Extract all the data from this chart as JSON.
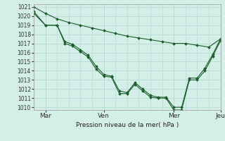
{
  "title": "Pression niveau de la mer( hPa )",
  "ylabel_min": 1010,
  "ylabel_max": 1021,
  "background_color": "#d4eee8",
  "grid_color_major": "#b0d8d0",
  "grid_color_minor": "#c8eae4",
  "line_color": "#1a5c2a",
  "xtick_labels": [
    "Mar",
    "Ven",
    "Mer",
    "Jeu"
  ],
  "xtick_positions": [
    1.5,
    9,
    18,
    24
  ],
  "x_smooth": [
    0,
    1.5,
    3,
    4.5,
    6,
    7.5,
    9,
    10.5,
    12,
    13.5,
    15,
    16.5,
    18,
    19.5,
    21,
    22.5,
    24
  ],
  "y_smooth": [
    1021.0,
    1020.3,
    1019.7,
    1019.3,
    1019.0,
    1018.7,
    1018.4,
    1018.1,
    1017.8,
    1017.6,
    1017.4,
    1017.2,
    1017.0,
    1017.0,
    1016.8,
    1016.6,
    1017.5
  ],
  "x_line1": [
    0,
    1.5,
    3,
    4,
    5,
    6,
    7,
    8,
    9,
    10,
    11,
    12,
    13,
    14,
    15,
    16,
    17,
    18,
    19,
    20,
    21,
    22,
    23,
    24
  ],
  "y_line1": [
    1020.5,
    1019.0,
    1019.0,
    1017.0,
    1016.7,
    1016.1,
    1015.5,
    1014.2,
    1013.4,
    1013.3,
    1011.5,
    1011.5,
    1012.5,
    1011.8,
    1011.1,
    1011.0,
    1011.0,
    1009.7,
    1009.7,
    1013.0,
    1013.0,
    1014.0,
    1015.6,
    1017.3
  ],
  "x_line2": [
    0,
    1.5,
    3,
    4,
    5,
    6,
    7,
    8,
    9,
    10,
    11,
    12,
    13,
    14,
    15,
    16,
    17,
    18,
    19,
    20,
    21,
    22,
    23,
    24
  ],
  "y_line2": [
    1020.3,
    1019.0,
    1019.0,
    1017.2,
    1016.9,
    1016.3,
    1015.7,
    1014.5,
    1013.6,
    1013.4,
    1011.8,
    1011.6,
    1012.7,
    1012.0,
    1011.3,
    1011.1,
    1011.1,
    1010.0,
    1010.0,
    1013.2,
    1013.2,
    1014.3,
    1015.8,
    1017.5
  ]
}
